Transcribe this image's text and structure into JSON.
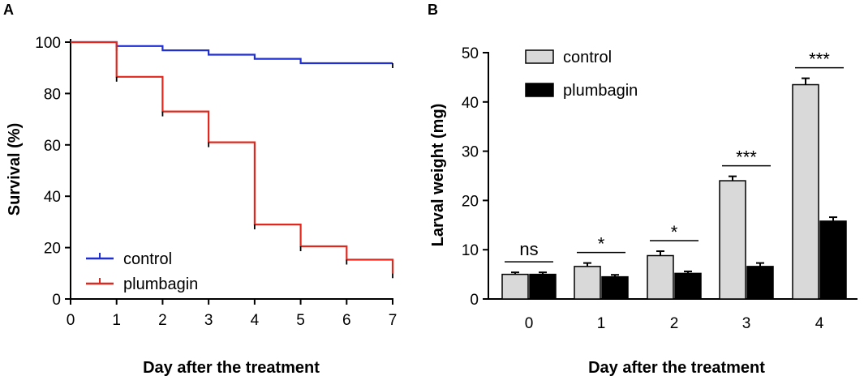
{
  "chart_data": [
    {
      "panel": "A",
      "type": "line",
      "title": "",
      "xlabel": "Day after the treatment",
      "ylabel": "Survival (%)",
      "xlim": [
        0,
        7
      ],
      "ylim": [
        0,
        100
      ],
      "xticks": [
        "0",
        "1",
        "2",
        "3",
        "4",
        "5",
        "6",
        "7"
      ],
      "yticks": [
        "0",
        "20",
        "40",
        "60",
        "80",
        "100"
      ],
      "step": true,
      "series": [
        {
          "name": "control",
          "color": "#1f2fd0",
          "points": [
            [
              0,
              100
            ],
            [
              1,
              100
            ],
            [
              1,
              98.5
            ],
            [
              2,
              98.5
            ],
            [
              2,
              96.8
            ],
            [
              3,
              96.8
            ],
            [
              3,
              95.1
            ],
            [
              4,
              95.1
            ],
            [
              4,
              93.5
            ],
            [
              5,
              93.5
            ],
            [
              5,
              91.8
            ],
            [
              7,
              91.8
            ]
          ],
          "censor": [
            [
              1,
              98.5
            ],
            [
              7,
              91.8
            ]
          ]
        },
        {
          "name": "plumbagin",
          "color": "#e0281e",
          "points": [
            [
              0,
              100
            ],
            [
              1,
              100
            ],
            [
              1,
              86.5
            ],
            [
              2,
              86.5
            ],
            [
              2,
              73
            ],
            [
              3,
              73
            ],
            [
              3,
              61
            ],
            [
              4,
              61
            ],
            [
              4,
              29
            ],
            [
              5,
              29
            ],
            [
              5,
              20.5
            ],
            [
              6,
              20.5
            ],
            [
              6,
              15.3
            ],
            [
              7,
              15.3
            ],
            [
              7,
              10
            ]
          ],
          "censor": [
            [
              1,
              86.5
            ],
            [
              2,
              73
            ],
            [
              3,
              61
            ],
            [
              4,
              29
            ],
            [
              5,
              20.5
            ],
            [
              6,
              15.3
            ],
            [
              7,
              10
            ]
          ]
        }
      ],
      "legend_position": "bottom-left",
      "legend": [
        "control",
        "plumbagin"
      ]
    },
    {
      "panel": "B",
      "type": "bar",
      "title": "",
      "xlabel": "Day after the treatment",
      "ylabel": "Larval weight (mg)",
      "categories": [
        "0",
        "1",
        "2",
        "3",
        "4"
      ],
      "ylim": [
        0,
        50
      ],
      "yticks": [
        "0",
        "10",
        "20",
        "30",
        "40",
        "50"
      ],
      "series": [
        {
          "name": "control",
          "color": "#d9d9d9",
          "values": [
            5.0,
            6.6,
            8.8,
            24.0,
            43.5
          ],
          "errors": [
            0.4,
            0.7,
            0.9,
            0.9,
            1.3
          ]
        },
        {
          "name": "plumbagin",
          "color": "#000000",
          "values": [
            5.0,
            4.5,
            5.2,
            6.6,
            15.8
          ],
          "errors": [
            0.4,
            0.4,
            0.4,
            0.7,
            0.8
          ]
        }
      ],
      "significance": [
        "ns",
        "*",
        "*",
        "***",
        "***"
      ],
      "legend_position": "top-left",
      "legend": [
        "control",
        "plumbagin"
      ]
    }
  ]
}
